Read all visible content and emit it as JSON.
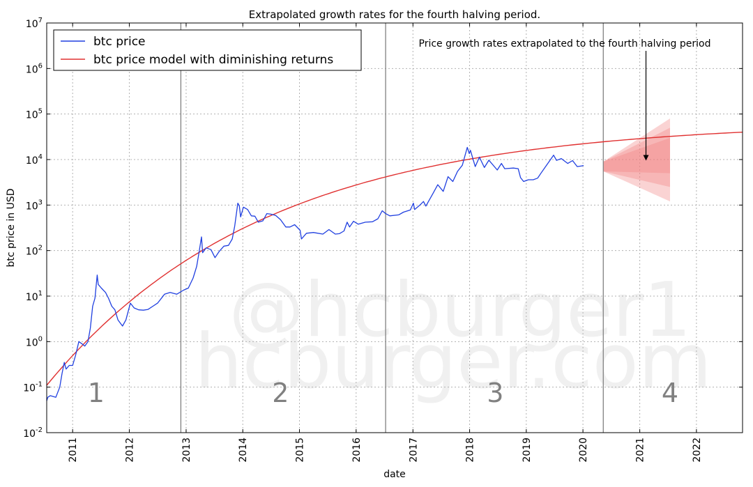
{
  "chart_data": {
    "type": "line",
    "title": "Extrapolated growth rates for the fourth halving period.",
    "xlabel": "date",
    "ylabel": "btc price in USD",
    "y_scale": "log",
    "ylim": [
      0.01,
      10000000
    ],
    "xlim": [
      "2010-07-18",
      "2022-10-25"
    ],
    "grid": true,
    "legend": {
      "position": "top-left",
      "entries": [
        "btc price",
        "btc price model with diminishing returns"
      ]
    },
    "x_ticks": [
      "2011",
      "2012",
      "2013",
      "2014",
      "2015",
      "2016",
      "2017",
      "2018",
      "2019",
      "2020",
      "2021",
      "2022"
    ],
    "y_ticks": [
      {
        "base": "10",
        "exp": "-2"
      },
      {
        "base": "10",
        "exp": "-1"
      },
      {
        "base": "10",
        "exp": "0"
      },
      {
        "base": "10",
        "exp": "1"
      },
      {
        "base": "10",
        "exp": "2"
      },
      {
        "base": "10",
        "exp": "3"
      },
      {
        "base": "10",
        "exp": "4"
      },
      {
        "base": "10",
        "exp": "5"
      },
      {
        "base": "10",
        "exp": "6"
      },
      {
        "base": "10",
        "exp": "7"
      }
    ],
    "halving_dates": [
      "2012-11-28",
      "2016-07-09",
      "2020-05-11"
    ],
    "period_labels": [
      {
        "text": "1",
        "date": "2011-06-01"
      },
      {
        "text": "2",
        "date": "2014-09-01"
      },
      {
        "text": "3",
        "date": "2018-06-15"
      },
      {
        "text": "4",
        "date": "2021-07-15"
      }
    ],
    "annotation": {
      "text": "Price growth rates extrapolated to the fourth halving period",
      "arrow_date": "2021-02-10",
      "arrow_value": 9500
    },
    "watermark": [
      "@hcburger1",
      "hcburger.com"
    ],
    "series": [
      {
        "name": "btc price",
        "color": "#1f3fe0",
        "points": [
          [
            "2010-07-18",
            0.05
          ],
          [
            "2010-07-25",
            0.06
          ],
          [
            "2010-08-10",
            0.065
          ],
          [
            "2010-09-15",
            0.06
          ],
          [
            "2010-10-10",
            0.1
          ],
          [
            "2010-10-25",
            0.2
          ],
          [
            "2010-11-08",
            0.35
          ],
          [
            "2010-11-20",
            0.25
          ],
          [
            "2010-12-10",
            0.3
          ],
          [
            "2011-01-01",
            0.3
          ],
          [
            "2011-01-20",
            0.5
          ],
          [
            "2011-02-10",
            1.0
          ],
          [
            "2011-03-01",
            0.9
          ],
          [
            "2011-03-20",
            0.8
          ],
          [
            "2011-04-10",
            1.0
          ],
          [
            "2011-04-25",
            2.0
          ],
          [
            "2011-05-10",
            6.0
          ],
          [
            "2011-05-25",
            9.0
          ],
          [
            "2011-06-08",
            29
          ],
          [
            "2011-06-15",
            18
          ],
          [
            "2011-07-05",
            15
          ],
          [
            "2011-08-01",
            12
          ],
          [
            "2011-08-20",
            9
          ],
          [
            "2011-09-10",
            6
          ],
          [
            "2011-09-30",
            5
          ],
          [
            "2011-10-20",
            3.0
          ],
          [
            "2011-11-18",
            2.2
          ],
          [
            "2011-12-10",
            3.0
          ],
          [
            "2012-01-08",
            7
          ],
          [
            "2012-02-01",
            5.5
          ],
          [
            "2012-03-01",
            5
          ],
          [
            "2012-04-01",
            4.9
          ],
          [
            "2012-05-01",
            5.1
          ],
          [
            "2012-06-01",
            6
          ],
          [
            "2012-07-01",
            7
          ],
          [
            "2012-08-15",
            11
          ],
          [
            "2012-09-20",
            12
          ],
          [
            "2012-11-01",
            11
          ],
          [
            "2012-12-15",
            13.5
          ],
          [
            "2013-01-15",
            15
          ],
          [
            "2013-02-15",
            25
          ],
          [
            "2013-03-10",
            45
          ],
          [
            "2013-03-25",
            90
          ],
          [
            "2013-04-10",
            200
          ],
          [
            "2013-04-17",
            90
          ],
          [
            "2013-05-10",
            115
          ],
          [
            "2013-06-10",
            105
          ],
          [
            "2013-07-06",
            70
          ],
          [
            "2013-08-01",
            95
          ],
          [
            "2013-09-01",
            125
          ],
          [
            "2013-10-01",
            130
          ],
          [
            "2013-10-25",
            180
          ],
          [
            "2013-11-10",
            350
          ],
          [
            "2013-11-30",
            1100
          ],
          [
            "2013-12-10",
            950
          ],
          [
            "2013-12-18",
            550
          ],
          [
            "2014-01-05",
            900
          ],
          [
            "2014-02-01",
            800
          ],
          [
            "2014-02-25",
            580
          ],
          [
            "2014-03-20",
            570
          ],
          [
            "2014-04-11",
            420
          ],
          [
            "2014-05-10",
            450
          ],
          [
            "2014-06-05",
            650
          ],
          [
            "2014-07-01",
            630
          ],
          [
            "2014-08-01",
            590
          ],
          [
            "2014-09-01",
            480
          ],
          [
            "2014-10-05",
            330
          ],
          [
            "2014-11-01",
            330
          ],
          [
            "2014-12-01",
            370
          ],
          [
            "2015-01-05",
            280
          ],
          [
            "2015-01-14",
            180
          ],
          [
            "2015-02-15",
            240
          ],
          [
            "2015-04-01",
            250
          ],
          [
            "2015-06-01",
            230
          ],
          [
            "2015-07-10",
            290
          ],
          [
            "2015-08-20",
            230
          ],
          [
            "2015-09-15",
            235
          ],
          [
            "2015-10-15",
            270
          ],
          [
            "2015-11-04",
            420
          ],
          [
            "2015-11-20",
            330
          ],
          [
            "2015-12-15",
            440
          ],
          [
            "2016-01-15",
            380
          ],
          [
            "2016-03-01",
            420
          ],
          [
            "2016-04-15",
            430
          ],
          [
            "2016-05-20",
            500
          ],
          [
            "2016-06-17",
            750
          ],
          [
            "2016-07-09",
            650
          ],
          [
            "2016-08-05",
            580
          ],
          [
            "2016-10-01",
            610
          ],
          [
            "2016-11-01",
            700
          ],
          [
            "2016-12-15",
            780
          ],
          [
            "2017-01-04",
            1100
          ],
          [
            "2017-01-12",
            800
          ],
          [
            "2017-02-15",
            1000
          ],
          [
            "2017-03-10",
            1200
          ],
          [
            "2017-03-25",
            950
          ],
          [
            "2017-05-10",
            1800
          ],
          [
            "2017-06-10",
            2800
          ],
          [
            "2017-07-15",
            2000
          ],
          [
            "2017-08-15",
            4200
          ],
          [
            "2017-09-15",
            3300
          ],
          [
            "2017-10-15",
            5500
          ],
          [
            "2017-11-15",
            7500
          ],
          [
            "2017-12-17",
            18500
          ],
          [
            "2017-12-30",
            13500
          ],
          [
            "2018-01-06",
            16000
          ],
          [
            "2018-02-06",
            7000
          ],
          [
            "2018-03-05",
            11300
          ],
          [
            "2018-04-06",
            6700
          ],
          [
            "2018-05-05",
            9700
          ],
          [
            "2018-06-28",
            5900
          ],
          [
            "2018-07-25",
            8200
          ],
          [
            "2018-08-15",
            6300
          ],
          [
            "2018-10-10",
            6500
          ],
          [
            "2018-11-10",
            6300
          ],
          [
            "2018-11-25",
            4000
          ],
          [
            "2018-12-15",
            3300
          ],
          [
            "2019-01-15",
            3600
          ],
          [
            "2019-02-15",
            3600
          ],
          [
            "2019-03-15",
            3900
          ],
          [
            "2019-04-05",
            5000
          ],
          [
            "2019-05-15",
            7800
          ],
          [
            "2019-06-26",
            12500
          ],
          [
            "2019-07-15",
            9600
          ],
          [
            "2019-08-15",
            10500
          ],
          [
            "2019-09-25",
            8200
          ],
          [
            "2019-10-26",
            9500
          ],
          [
            "2019-11-25",
            7000
          ],
          [
            "2019-12-25",
            7250
          ],
          [
            "2020-01-05",
            7400
          ]
        ]
      },
      {
        "name": "btc price model with diminishing returns",
        "color": "#e03030",
        "model_anchors": [
          [
            "2010-07-18",
            0.11
          ],
          [
            "2022-10-25",
            40000
          ]
        ]
      }
    ],
    "projection_band": {
      "color": "#f08080",
      "start_date": "2020-05-11",
      "end_date": "2021-07-15",
      "start_low": 5500,
      "start_high": 9000,
      "end_layers": [
        {
          "low": 1200,
          "high": 80000
        },
        {
          "low": 2500,
          "high": 50000
        },
        {
          "low": 5000,
          "high": 30000
        }
      ]
    }
  }
}
